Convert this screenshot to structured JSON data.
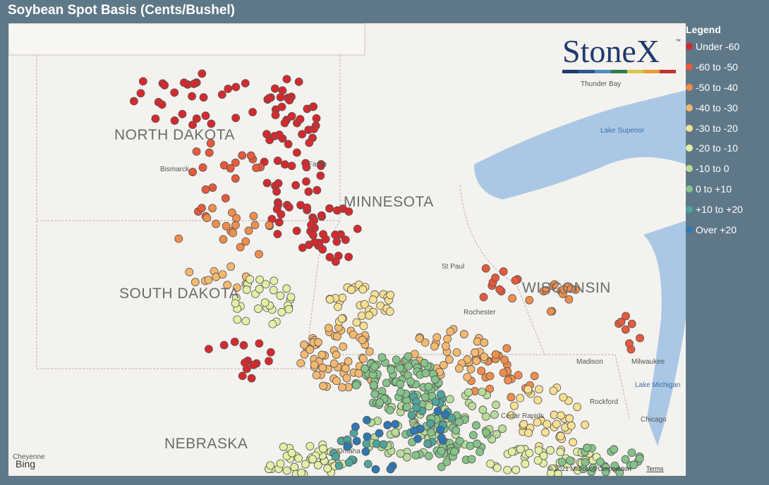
{
  "header": {
    "title": "Soybean Spot Basis (Cents/Bushel)"
  },
  "logo": {
    "text": "StoneX",
    "mark": "™"
  },
  "legend": {
    "title": "Legend",
    "items": [
      {
        "label": "Under -60",
        "color": "#d42a2e"
      },
      {
        "label": "-60 to -50",
        "color": "#e65a3c"
      },
      {
        "label": "-50 to -40",
        "color": "#ef8d4c"
      },
      {
        "label": "-40 to -30",
        "color": "#f4b870"
      },
      {
        "label": "-30 to -20",
        "color": "#f7df93"
      },
      {
        "label": "-20 to -10",
        "color": "#e4efa6"
      },
      {
        "label": "-10 to 0",
        "color": "#b9dc9a"
      },
      {
        "label": "0 to +10",
        "color": "#86c38a"
      },
      {
        "label": "+10 to +20",
        "color": "#4fa59b"
      },
      {
        "label": "Over +20",
        "color": "#2f78b3"
      }
    ]
  },
  "map": {
    "states": [
      "NORTH DAKOTA",
      "SOUTH DAKOTA",
      "MINNESOTA",
      "WISCONSIN",
      "NEBRASKA"
    ],
    "places": [
      "Bismarck",
      "Fargo",
      "St Paul",
      "Rochester",
      "Madison",
      "Milwaukee",
      "Chicago",
      "Thunder Bay",
      "Lake Superior",
      "Lake Michigan",
      "Cedar Rapids",
      "Rockford",
      "Omaha",
      "Cheyenne"
    ],
    "attribution": {
      "provider": "Bing",
      "copyright": "© 2021 Microsoft Corporation",
      "terms": "Terms"
    }
  }
}
